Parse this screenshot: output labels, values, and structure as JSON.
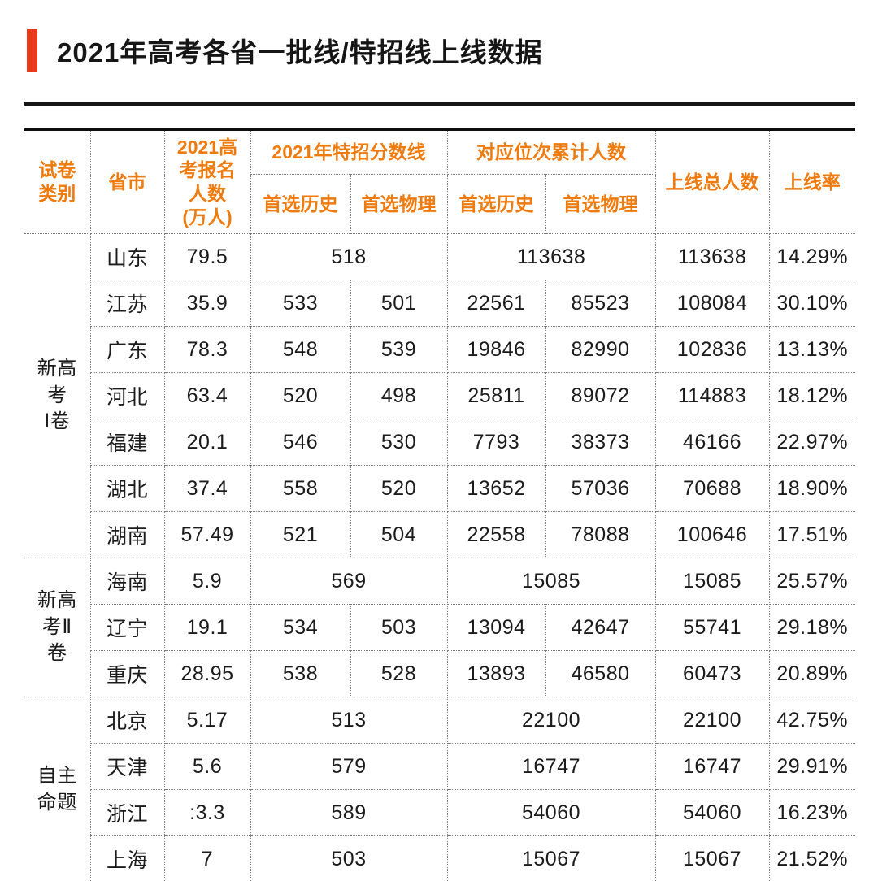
{
  "title": "2021年高考各省一批线/特招线上线数据",
  "colors": {
    "accent_bar_red": "#e8391d",
    "header_orange": "#ef7b0e",
    "rule_black": "#161616"
  },
  "table": {
    "headers": {
      "paper_type": "试卷\n类别",
      "province": "省市",
      "registered": "2021高\n考报名\n人数\n(万人)",
      "special_line": "2021年特招分数线",
      "rank_cum": "对应位次累计人数",
      "sub_history": "首选历史",
      "sub_physics": "首选物理",
      "total": "上线总人数",
      "rate": "上线率"
    },
    "groups": [
      {
        "label": "新高\n考\nⅠ卷",
        "rows": [
          {
            "province": "山东",
            "registered": "79.5",
            "special": [
              "518"
            ],
            "rank": [
              "113638"
            ],
            "total": "113638",
            "rate": "14.29%"
          },
          {
            "province": "江苏",
            "registered": "35.9",
            "special": [
              "533",
              "501"
            ],
            "rank": [
              "22561",
              "85523"
            ],
            "total": "108084",
            "rate": "30.10%"
          },
          {
            "province": "广东",
            "registered": "78.3",
            "special": [
              "548",
              "539"
            ],
            "rank": [
              "19846",
              "82990"
            ],
            "total": "102836",
            "rate": "13.13%"
          },
          {
            "province": "河北",
            "registered": "63.4",
            "special": [
              "520",
              "498"
            ],
            "rank": [
              "25811",
              "89072"
            ],
            "total": "114883",
            "rate": "18.12%"
          },
          {
            "province": "福建",
            "registered": "20.1",
            "special": [
              "546",
              "530"
            ],
            "rank": [
              "7793",
              "38373"
            ],
            "total": "46166",
            "rate": "22.97%"
          },
          {
            "province": "湖北",
            "registered": "37.4",
            "special": [
              "558",
              "520"
            ],
            "rank": [
              "13652",
              "57036"
            ],
            "total": "70688",
            "rate": "18.90%"
          },
          {
            "province": "湖南",
            "registered": "57.49",
            "special": [
              "521",
              "504"
            ],
            "rank": [
              "22558",
              "78088"
            ],
            "total": "100646",
            "rate": "17.51%"
          }
        ]
      },
      {
        "label": "新高\n考Ⅱ\n卷",
        "rows": [
          {
            "province": "海南",
            "registered": "5.9",
            "special": [
              "569"
            ],
            "rank": [
              "15085"
            ],
            "total": "15085",
            "rate": "25.57%"
          },
          {
            "province": "辽宁",
            "registered": "19.1",
            "special": [
              "534",
              "503"
            ],
            "rank": [
              "13094",
              "42647"
            ],
            "total": "55741",
            "rate": "29.18%"
          },
          {
            "province": "重庆",
            "registered": "28.95",
            "special": [
              "538",
              "528"
            ],
            "rank": [
              "13893",
              "46580"
            ],
            "total": "60473",
            "rate": "20.89%"
          }
        ]
      },
      {
        "label": "自主\n命题",
        "rows": [
          {
            "province": "北京",
            "registered": "5.17",
            "special": [
              "513"
            ],
            "rank": [
              "22100"
            ],
            "total": "22100",
            "rate": "42.75%"
          },
          {
            "province": "天津",
            "registered": "5.6",
            "special": [
              "579"
            ],
            "rank": [
              "16747"
            ],
            "total": "16747",
            "rate": "29.91%"
          },
          {
            "province": "浙江",
            "registered": ":3.3",
            "special": [
              "589"
            ],
            "rank": [
              "54060"
            ],
            "total": "54060",
            "rate": "16.23%"
          },
          {
            "province": "上海",
            "registered": "7",
            "special": [
              "503"
            ],
            "rank": [
              "15067"
            ],
            "total": "15067",
            "rate": "21.52%"
          }
        ]
      }
    ]
  }
}
